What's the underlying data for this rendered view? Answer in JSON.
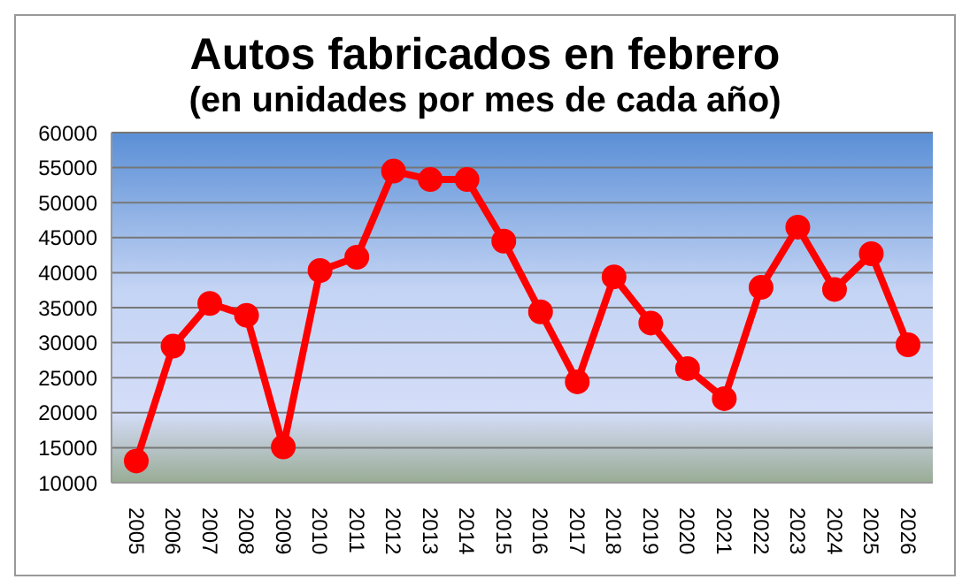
{
  "chart_data": {
    "type": "line",
    "title": "Autos fabricados en febrero",
    "subtitle": "(en unidades por mes de cada año)",
    "categories": [
      "2005",
      "2006",
      "2007",
      "2008",
      "2009",
      "2010",
      "2011",
      "2012",
      "2013",
      "2014",
      "2015",
      "2016",
      "2017",
      "2018",
      "2019",
      "2020",
      "2021",
      "2022",
      "2023",
      "2024",
      "2025",
      "2026"
    ],
    "series": [
      {
        "color": "#ff0000",
        "values": [
          13100,
          29500,
          35600,
          33900,
          15100,
          40300,
          42200,
          54500,
          53300,
          53300,
          44500,
          34400,
          24400,
          39400,
          32800,
          26300,
          22000,
          37900,
          46500,
          37600,
          42700,
          29700
        ]
      }
    ],
    "ylim": [
      10000,
      60000
    ],
    "yticks": [
      10000,
      15000,
      20000,
      25000,
      30000,
      35000,
      40000,
      45000,
      50000,
      55000,
      60000
    ],
    "grid": "y",
    "marker": "circle",
    "line_style": "solid",
    "legend": false
  }
}
